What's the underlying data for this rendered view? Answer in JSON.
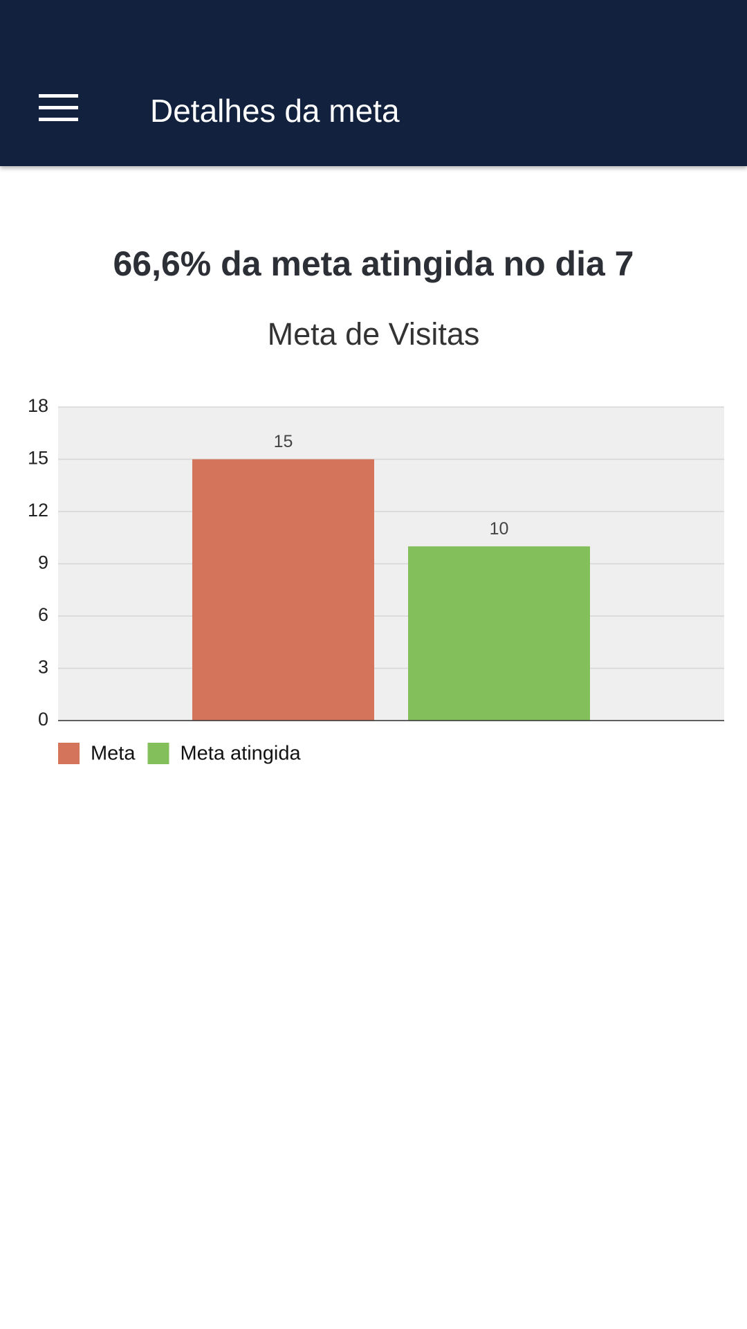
{
  "app_bar": {
    "title": "Detalhes da meta"
  },
  "heading": "66,6% da meta atingida no dia 7",
  "chart_data": {
    "type": "bar",
    "title": "Meta de Visitas",
    "categories": [
      null
    ],
    "series": [
      {
        "name": "Meta",
        "color": "#d4745a",
        "values": [
          15
        ]
      },
      {
        "name": "Meta atingida",
        "color": "#83bf5a",
        "values": [
          10
        ]
      }
    ],
    "ylim": [
      0,
      18
    ],
    "yticks": [
      0,
      3,
      6,
      9,
      12,
      15,
      18
    ],
    "grid": true,
    "legend": "bottom-left"
  }
}
